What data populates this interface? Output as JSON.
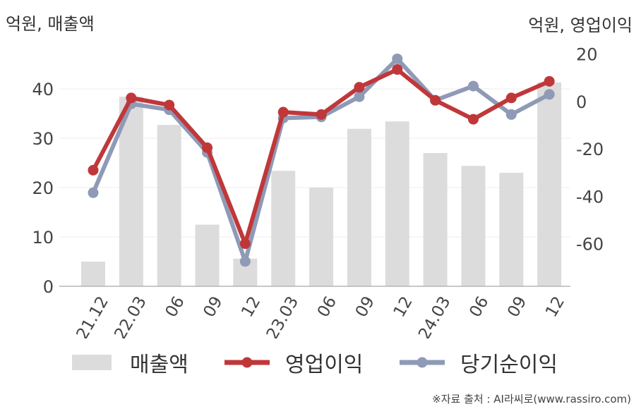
{
  "unit_left": "억원, 매출액",
  "unit_right": "억원, 영업이익",
  "source": "※자료 출처 : AI라씨로(www.rassiro.com)",
  "colors": {
    "bar": "#dcdcdc",
    "op": "#c0373a",
    "net": "#8e9ab6"
  },
  "chart_data": {
    "type": "bar+line",
    "categories": [
      "21.12",
      "22.03",
      "06",
      "09",
      "12",
      "23.03",
      "06",
      "09",
      "12",
      "24.03",
      "06",
      "09",
      "12"
    ],
    "y_left": {
      "ticks": [
        0,
        10,
        20,
        30,
        40
      ],
      "range": [
        0,
        48
      ]
    },
    "y_right": {
      "ticks": [
        -60,
        -40,
        -20,
        0,
        20
      ],
      "range": [
        -78,
        22
      ]
    },
    "series": [
      {
        "name": "매출액",
        "type": "bar",
        "axis": "left",
        "values": [
          5.0,
          38.4,
          32.7,
          12.5,
          5.6,
          23.4,
          20.0,
          31.9,
          33.4,
          27.0,
          24.4,
          23.0,
          41.3
        ]
      },
      {
        "name": "영업이익",
        "type": "line",
        "axis": "right",
        "values": [
          -29,
          1.5,
          -1.5,
          -19.5,
          -60,
          -4.5,
          -5.5,
          6,
          13.5,
          0.5,
          -7.5,
          1.5,
          8.5
        ]
      },
      {
        "name": "당기순이익",
        "type": "line",
        "axis": "right",
        "values": [
          -38.5,
          -1,
          -3.5,
          -21.5,
          -67.5,
          -7,
          -6.5,
          2,
          18,
          0.5,
          6.5,
          -5.5,
          3
        ]
      }
    ],
    "legend": [
      "매출액",
      "영업이익",
      "당기순이익"
    ],
    "legend_position": "bottom",
    "grid": true
  }
}
